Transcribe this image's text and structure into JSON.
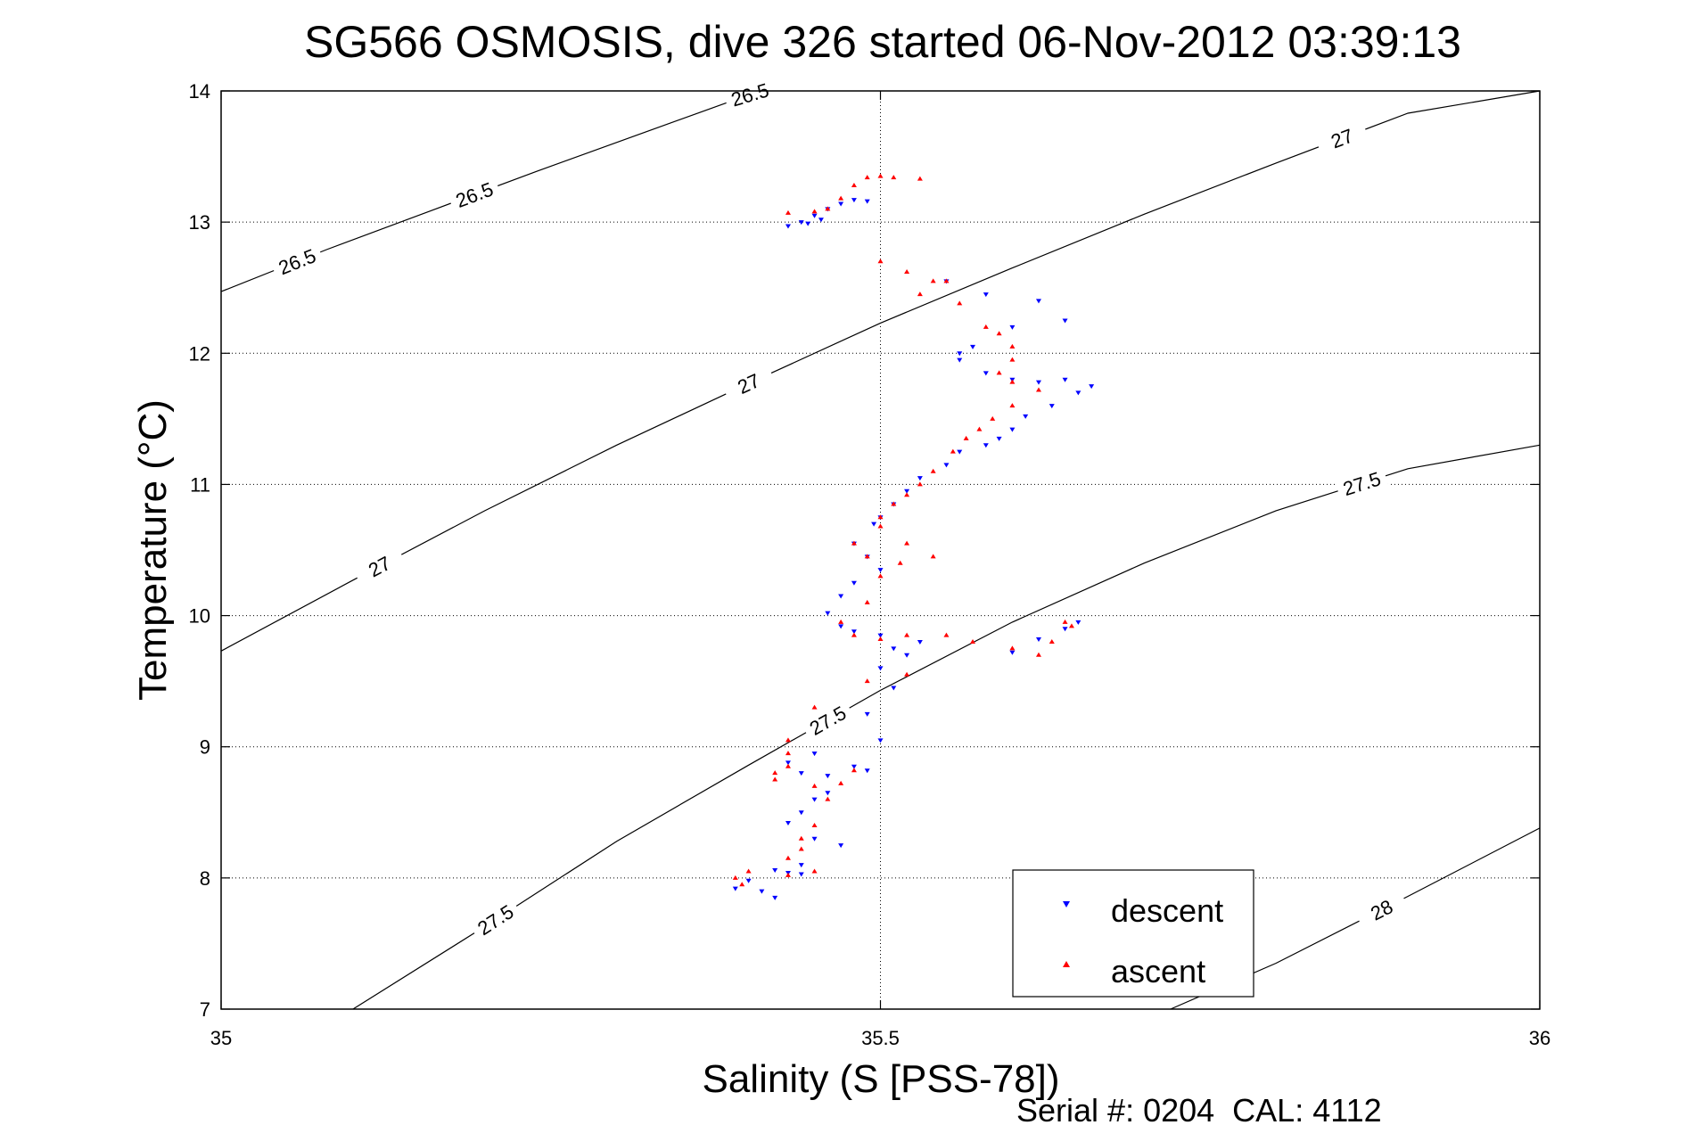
{
  "chart_data": {
    "type": "scatter",
    "title": "SG566 OSMOSIS, dive 326 started 06-Nov-2012 03:39:13",
    "xlabel": "Salinity (S [PSS-78])",
    "ylabel": "Temperature (°C)",
    "footer": "Serial #: 0204  CAL: 4112",
    "xlim": [
      35,
      36
    ],
    "ylim": [
      7,
      14
    ],
    "x_ticks": [
      "35",
      "35.5",
      "36"
    ],
    "x_tick_values": [
      35,
      35.5,
      36
    ],
    "y_ticks": [
      "7",
      "8",
      "9",
      "10",
      "11",
      "12",
      "13",
      "14"
    ],
    "y_tick_values": [
      7,
      8,
      9,
      10,
      11,
      12,
      13,
      14
    ],
    "grid": true,
    "legend_position": "bottom-right",
    "legend": [
      "descent",
      "ascent"
    ],
    "series": [
      {
        "name": "descent",
        "marker": "triangle-down",
        "color": "#0000ff",
        "points": [
          [
            35.43,
            12.97
          ],
          [
            35.44,
            13.0
          ],
          [
            35.45,
            13.05
          ],
          [
            35.46,
            13.1
          ],
          [
            35.47,
            13.14
          ],
          [
            35.48,
            13.17
          ],
          [
            35.49,
            13.16
          ],
          [
            35.445,
            12.99
          ],
          [
            35.455,
            13.02
          ],
          [
            35.64,
            12.25
          ],
          [
            35.6,
            12.2
          ],
          [
            35.57,
            12.05
          ],
          [
            35.56,
            12.0
          ],
          [
            35.56,
            11.95
          ],
          [
            35.58,
            11.85
          ],
          [
            35.6,
            11.8
          ],
          [
            35.62,
            11.78
          ],
          [
            35.64,
            11.8
          ],
          [
            35.66,
            11.75
          ],
          [
            35.65,
            11.7
          ],
          [
            35.63,
            11.6
          ],
          [
            35.61,
            11.52
          ],
          [
            35.6,
            11.42
          ],
          [
            35.59,
            11.35
          ],
          [
            35.58,
            11.3
          ],
          [
            35.56,
            11.25
          ],
          [
            35.55,
            11.15
          ],
          [
            35.53,
            11.05
          ],
          [
            35.52,
            10.95
          ],
          [
            35.51,
            10.85
          ],
          [
            35.5,
            10.75
          ],
          [
            35.495,
            10.7
          ],
          [
            35.48,
            10.55
          ],
          [
            35.49,
            10.45
          ],
          [
            35.5,
            10.35
          ],
          [
            35.48,
            10.25
          ],
          [
            35.47,
            10.15
          ],
          [
            35.46,
            10.02
          ],
          [
            35.47,
            9.92
          ],
          [
            35.48,
            9.88
          ],
          [
            35.5,
            9.85
          ],
          [
            35.51,
            9.75
          ],
          [
            35.52,
            9.7
          ],
          [
            35.53,
            9.8
          ],
          [
            35.6,
            9.72
          ],
          [
            35.62,
            9.82
          ],
          [
            35.64,
            9.9
          ],
          [
            35.65,
            9.95
          ],
          [
            35.5,
            9.6
          ],
          [
            35.51,
            9.45
          ],
          [
            35.49,
            9.25
          ],
          [
            35.5,
            9.05
          ],
          [
            35.45,
            8.95
          ],
          [
            35.43,
            8.88
          ],
          [
            35.44,
            8.8
          ],
          [
            35.46,
            8.78
          ],
          [
            35.48,
            8.85
          ],
          [
            35.49,
            8.82
          ],
          [
            35.46,
            8.65
          ],
          [
            35.45,
            8.6
          ],
          [
            35.44,
            8.5
          ],
          [
            35.43,
            8.42
          ],
          [
            35.45,
            8.3
          ],
          [
            35.47,
            8.25
          ],
          [
            35.44,
            8.1
          ],
          [
            35.42,
            8.06
          ],
          [
            35.43,
            8.04
          ],
          [
            35.44,
            8.03
          ],
          [
            35.4,
            7.98
          ],
          [
            35.39,
            7.92
          ],
          [
            35.41,
            7.9
          ],
          [
            35.42,
            7.85
          ],
          [
            35.55,
            12.55
          ],
          [
            35.58,
            12.45
          ],
          [
            35.62,
            12.4
          ]
        ]
      },
      {
        "name": "ascent",
        "marker": "triangle-up",
        "color": "#ff0000",
        "points": [
          [
            35.43,
            13.07
          ],
          [
            35.45,
            13.08
          ],
          [
            35.46,
            13.1
          ],
          [
            35.47,
            13.18
          ],
          [
            35.48,
            13.28
          ],
          [
            35.49,
            13.34
          ],
          [
            35.5,
            13.35
          ],
          [
            35.51,
            13.34
          ],
          [
            35.53,
            13.33
          ],
          [
            35.5,
            12.7
          ],
          [
            35.52,
            12.62
          ],
          [
            35.54,
            12.55
          ],
          [
            35.56,
            12.38
          ],
          [
            35.58,
            12.2
          ],
          [
            35.59,
            12.15
          ],
          [
            35.6,
            12.05
          ],
          [
            35.6,
            11.95
          ],
          [
            35.59,
            11.85
          ],
          [
            35.6,
            11.78
          ],
          [
            35.62,
            11.72
          ],
          [
            35.6,
            11.6
          ],
          [
            35.585,
            11.5
          ],
          [
            35.575,
            11.42
          ],
          [
            35.565,
            11.35
          ],
          [
            35.555,
            11.25
          ],
          [
            35.54,
            11.1
          ],
          [
            35.53,
            11.0
          ],
          [
            35.52,
            10.92
          ],
          [
            35.51,
            10.85
          ],
          [
            35.5,
            10.75
          ],
          [
            35.5,
            10.68
          ],
          [
            35.52,
            10.55
          ],
          [
            35.54,
            10.45
          ],
          [
            35.515,
            10.4
          ],
          [
            35.48,
            10.55
          ],
          [
            35.49,
            10.45
          ],
          [
            35.5,
            10.3
          ],
          [
            35.49,
            10.1
          ],
          [
            35.47,
            9.95
          ],
          [
            35.48,
            9.85
          ],
          [
            35.5,
            9.82
          ],
          [
            35.52,
            9.85
          ],
          [
            35.55,
            9.85
          ],
          [
            35.57,
            9.8
          ],
          [
            35.6,
            9.75
          ],
          [
            35.62,
            9.7
          ],
          [
            35.63,
            9.8
          ],
          [
            35.64,
            9.95
          ],
          [
            35.645,
            9.92
          ],
          [
            35.52,
            9.55
          ],
          [
            35.49,
            9.5
          ],
          [
            35.45,
            9.3
          ],
          [
            35.43,
            9.05
          ],
          [
            35.43,
            8.95
          ],
          [
            35.43,
            8.85
          ],
          [
            35.42,
            8.75
          ],
          [
            35.42,
            8.8
          ],
          [
            35.45,
            8.7
          ],
          [
            35.47,
            8.72
          ],
          [
            35.48,
            8.82
          ],
          [
            35.46,
            8.6
          ],
          [
            35.45,
            8.4
          ],
          [
            35.44,
            8.3
          ],
          [
            35.44,
            8.22
          ],
          [
            35.43,
            8.15
          ],
          [
            35.4,
            8.05
          ],
          [
            35.39,
            8.0
          ],
          [
            35.395,
            7.95
          ],
          [
            35.43,
            8.02
          ],
          [
            35.45,
            8.05
          ],
          [
            35.55,
            12.55
          ],
          [
            35.53,
            12.45
          ]
        ]
      }
    ],
    "isopycnals": [
      {
        "label": "26.5",
        "points": [
          [
            35.0,
            12.47
          ],
          [
            35.08,
            12.79
          ],
          [
            35.16,
            13.09
          ],
          [
            35.24,
            13.39
          ],
          [
            35.32,
            13.68
          ],
          [
            35.4,
            13.97
          ],
          [
            35.41,
            14.0
          ]
        ]
      },
      {
        "label": "27",
        "points": [
          [
            35.0,
            9.73
          ],
          [
            35.1,
            10.27
          ],
          [
            35.2,
            10.8
          ],
          [
            35.3,
            11.3
          ],
          [
            35.4,
            11.77
          ],
          [
            35.5,
            12.23
          ],
          [
            35.6,
            12.65
          ],
          [
            35.7,
            13.06
          ],
          [
            35.8,
            13.45
          ],
          [
            35.9,
            13.83
          ],
          [
            36.0,
            14.2
          ]
        ]
      },
      {
        "label": "27.5",
        "points": [
          [
            35.1,
            7.0
          ],
          [
            35.2,
            7.63
          ],
          [
            35.3,
            8.28
          ],
          [
            35.4,
            8.86
          ],
          [
            35.5,
            9.43
          ],
          [
            35.6,
            9.95
          ],
          [
            35.7,
            10.4
          ],
          [
            35.8,
            10.8
          ],
          [
            35.9,
            11.12
          ],
          [
            36.0,
            11.3
          ]
        ]
      },
      {
        "label": "28",
        "points": [
          [
            35.72,
            7.0
          ],
          [
            35.8,
            7.35
          ],
          [
            35.9,
            7.86
          ],
          [
            36.0,
            8.38
          ]
        ]
      }
    ]
  }
}
